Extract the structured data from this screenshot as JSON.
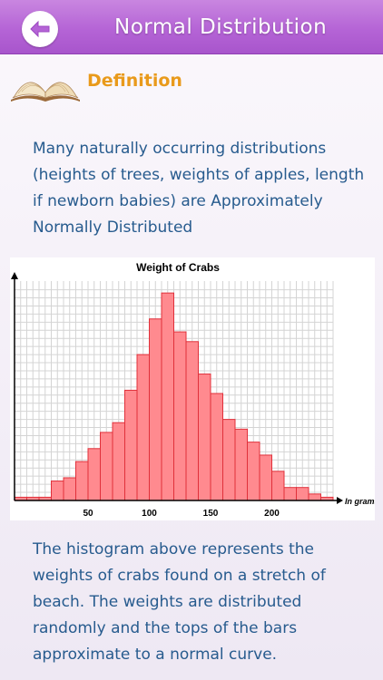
{
  "header": {
    "title": "Normal Distribution",
    "back_icon": "back-arrow-icon"
  },
  "section": {
    "label": "Definition",
    "icon": "open-book-icon"
  },
  "intro_text": "Many naturally occurring distributions (heights of trees, weights of apples, length if newborn babies) are Approximately Normally Distributed",
  "chart_data": {
    "type": "bar",
    "title": "Weight of Crabs",
    "xlabel": "In grams",
    "ylabel": "",
    "x_ticks": [
      50,
      100,
      150,
      200
    ],
    "bin_width": 10,
    "x_range": [
      0,
      240
    ],
    "values": [
      0.5,
      0.5,
      0.5,
      3,
      3.5,
      6,
      8,
      10.5,
      12,
      17,
      22.5,
      28,
      32,
      26,
      24.5,
      19.5,
      16.5,
      12.5,
      11,
      9,
      7,
      4.5,
      2,
      2,
      1,
      0.5
    ],
    "bin_starts": [
      -10,
      0,
      10,
      20,
      30,
      40,
      50,
      60,
      70,
      80,
      90,
      100,
      110,
      120,
      130,
      140,
      150,
      160,
      170,
      180,
      190,
      200,
      210,
      220,
      230,
      240
    ],
    "ylim": [
      0,
      33
    ],
    "grid": true,
    "bar_color": "#ff8a8f",
    "bar_edge": "#e0303a"
  },
  "outro_text": "The histogram above represents the weights of crabs found on a stretch of beach. The weights are distributed randomly and the tops of the bars approximate to a normal curve."
}
